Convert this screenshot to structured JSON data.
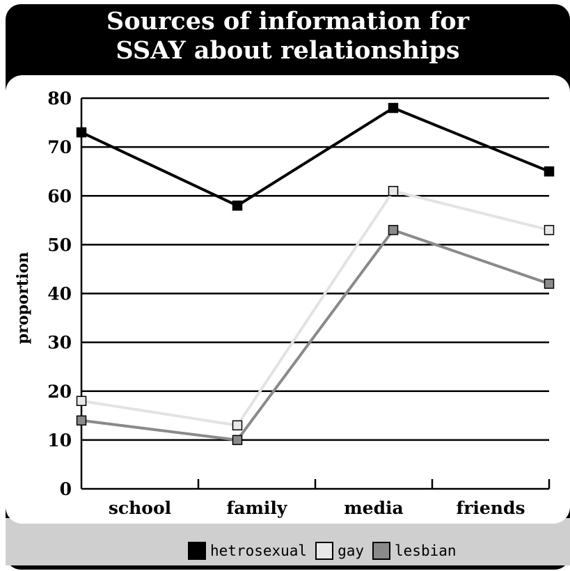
{
  "chart_data": {
    "type": "line",
    "title_lines": [
      "Sources of information for",
      "SSAY about relationships"
    ],
    "ylabel": "proportion",
    "xlabel": "",
    "categories": [
      "school",
      "family",
      "media",
      "friends"
    ],
    "ylim": [
      0,
      80
    ],
    "yticks": [
      0,
      10,
      20,
      30,
      40,
      50,
      60,
      70,
      80
    ],
    "grid": true,
    "legend_position": "bottom",
    "series": [
      {
        "name": "hetrosexual",
        "values": [
          73,
          58,
          78,
          65
        ],
        "line_color": "#000000",
        "marker_color": "#000000"
      },
      {
        "name": "gay",
        "values": [
          18,
          13,
          61,
          53
        ],
        "line_color": "#e3e3e3",
        "marker_color": "#e8e8e8"
      },
      {
        "name": "lesbian",
        "values": [
          14,
          10,
          53,
          42
        ],
        "line_color": "#8a8a8a",
        "marker_color": "#8a8a8a"
      }
    ]
  }
}
